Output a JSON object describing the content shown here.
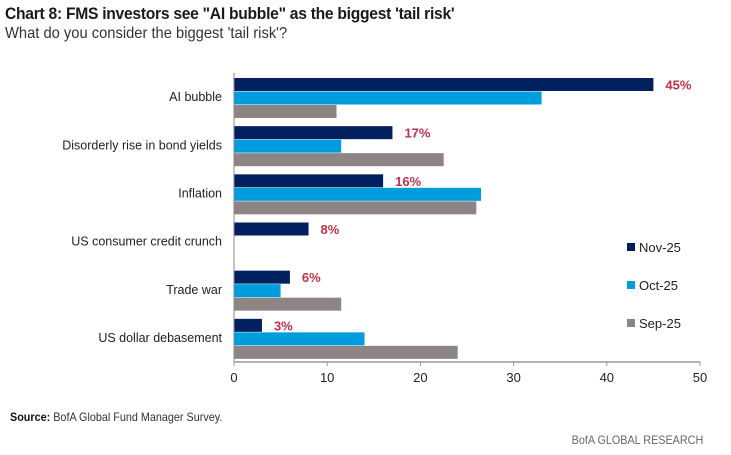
{
  "title": "Chart 8: FMS investors see \"AI bubble\" as the biggest 'tail risk'",
  "subtitle": "What do you consider the biggest 'tail risk'?",
  "source_label": "Source:",
  "source_text": "BofA Global Fund Manager Survey.",
  "brand": "BofA GLOBAL RESEARCH",
  "chart_data": {
    "type": "bar",
    "orientation": "horizontal",
    "title": "Chart 8: FMS investors see \"AI bubble\" as the biggest 'tail risk'",
    "subtitle": "What do you consider the biggest 'tail risk'?",
    "xlabel": "",
    "ylabel": "",
    "xlim": [
      0,
      50
    ],
    "xticks": [
      0,
      10,
      20,
      30,
      40,
      50
    ],
    "grid": false,
    "legend_position": "right",
    "categories": [
      "AI bubble",
      "Disorderly rise in bond yields",
      "Inflation",
      "US consumer credit crunch",
      "Trade war",
      "US dollar debasement"
    ],
    "series": [
      {
        "name": "Nov-25",
        "color": "#002060",
        "values": [
          45,
          17,
          16,
          8,
          6,
          3
        ]
      },
      {
        "name": "Oct-25",
        "color": "#009ddc",
        "values": [
          33,
          11.5,
          26.5,
          null,
          5,
          14
        ]
      },
      {
        "name": "Sep-25",
        "color": "#8c8584",
        "values": [
          11,
          22.5,
          26,
          null,
          11.5,
          24
        ]
      }
    ],
    "data_labels": [
      "45%",
      "17%",
      "16%",
      "8%",
      "6%",
      "3%"
    ],
    "data_label_color": "#c0304a"
  }
}
